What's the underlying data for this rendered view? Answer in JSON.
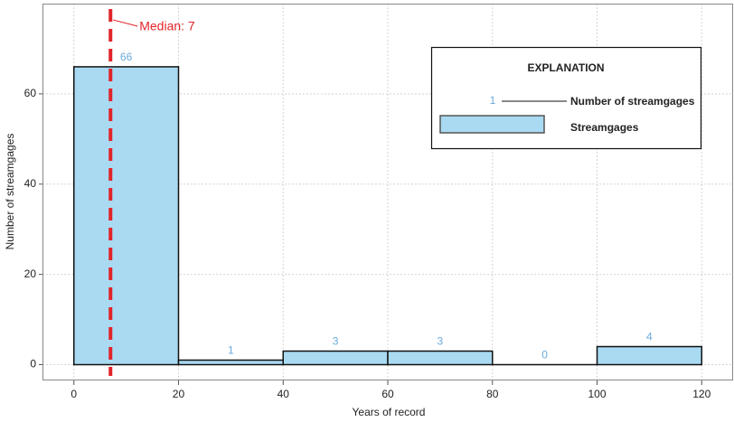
{
  "chart_data": {
    "type": "histogram",
    "x_label": "Years of record",
    "y_label": "Number of streamgages",
    "bins": [
      0,
      20,
      40,
      60,
      80,
      100,
      120
    ],
    "series": [
      {
        "name": "Streamgages",
        "color": "#a9daf2",
        "values": [
          66,
          1,
          3,
          3,
          0,
          4
        ]
      }
    ],
    "value_label_color": "#6aaadc",
    "median": {
      "value": 7,
      "label": "Median: 7",
      "color": "#e0242a"
    },
    "legend": {
      "title": "EXPLANATION",
      "sample_label": "1",
      "sample_description": "Number of streamgages"
    },
    "xlim": [
      -6,
      126
    ],
    "ylim": [
      -3.5,
      80
    ],
    "xticks": [
      0,
      20,
      40,
      60,
      80,
      100,
      120
    ],
    "yticks": [
      0,
      20,
      40,
      60
    ],
    "grid": true
  }
}
